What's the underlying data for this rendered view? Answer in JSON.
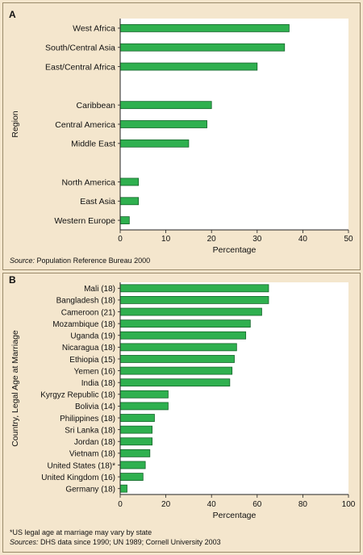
{
  "colors": {
    "background": "#f4e6cd",
    "plot_background": "#ffffff",
    "bar_fill": "#2fb04f",
    "bar_stroke": "#14652a",
    "axis": "#222222"
  },
  "panel_a": {
    "letter": "A",
    "source_key": "Source:",
    "source_text": " Population Reference Bureau 2000"
  },
  "panel_b": {
    "letter": "B",
    "footnote": "*US legal age at marriage may vary by state",
    "sources_key": "Sources:",
    "sources_text": " DHS data since 1990; UN 1989; Cornell University 2003"
  },
  "chart_data": [
    {
      "type": "bar",
      "orientation": "horizontal",
      "categories": [
        "West Africa",
        "South/Central Asia",
        "East/Central Africa",
        "",
        "Caribbean",
        "Central America",
        "Middle East",
        "",
        "North America",
        "East Asia",
        "Western Europe"
      ],
      "values": [
        37,
        36,
        30,
        null,
        20,
        19,
        15,
        null,
        4,
        4,
        2
      ],
      "xlabel": "Percentage",
      "ylabel": "Region",
      "xlim": [
        0,
        50
      ],
      "xticks": [
        0,
        10,
        20,
        30,
        40,
        50
      ],
      "grid": false
    },
    {
      "type": "bar",
      "orientation": "horizontal",
      "categories": [
        "Mali (18)",
        "Bangladesh (18)",
        "Cameroon (21)",
        "Mozambique (18)",
        "Uganda (19)",
        "Nicaragua (18)",
        "Ethiopia (15)",
        "Yemen (16)",
        "India (18)",
        "Kyrgyz Republic (18)",
        "Bolivia (14)",
        "Philippines (18)",
        "Sri Lanka (18)",
        "Jordan (18)",
        "Vietnam (18)",
        "United States (18)*",
        "United Kingdom (16)",
        "Germany (18)"
      ],
      "values": [
        65,
        65,
        62,
        57,
        55,
        51,
        50,
        49,
        48,
        21,
        21,
        15,
        14,
        14,
        13,
        11,
        10,
        3
      ],
      "xlabel": "Percentage",
      "ylabel": "Country, Legal Age at Marriage",
      "xlim": [
        0,
        100
      ],
      "xticks": [
        0,
        20,
        40,
        60,
        80,
        100
      ],
      "grid": false
    }
  ]
}
